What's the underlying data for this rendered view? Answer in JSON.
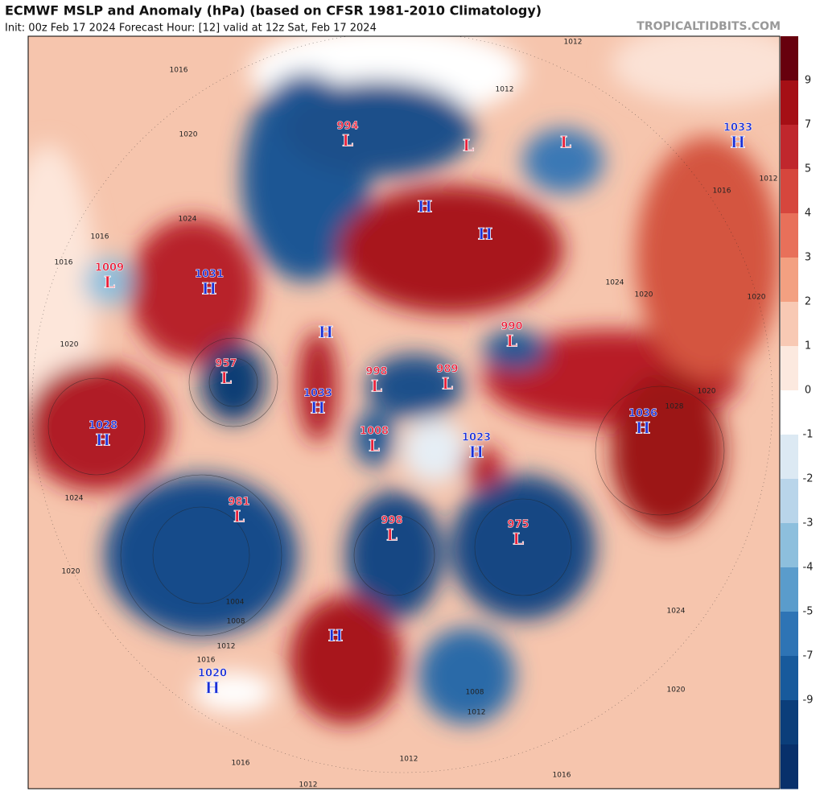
{
  "header": {
    "title": "ECMWF MSLP and Anomaly (hPa) (based on CFSR 1981-2010 Climatology)",
    "subtitle": "Init: 00z Feb 17 2024   Forecast Hour: [12]   valid at 12z Sat, Feb 17 2024",
    "site": "TROPICALTIDBITS.COM"
  },
  "colorbar": {
    "ticks": [
      9,
      7,
      5,
      4,
      3,
      2,
      1,
      0,
      -1,
      -2,
      -3,
      -4,
      -5,
      -7,
      -9
    ],
    "colors": [
      "#67000d",
      "#a50f15",
      "#c0272d",
      "#d6463d",
      "#e8705a",
      "#f3a081",
      "#f8c9b4",
      "#fce9df",
      "#ffffff",
      "#dce9f3",
      "#b9d5ea",
      "#8dbfdd",
      "#5a9ccc",
      "#2e74b5",
      "#175a9c",
      "#0b3e7a",
      "#08306b"
    ]
  },
  "centers": [
    {
      "label": "994",
      "kind": "L"
    },
    {
      "kind": "L"
    },
    {
      "kind": "L"
    },
    {
      "label": "1033",
      "kind": "H"
    },
    {
      "kind": "H"
    },
    {
      "kind": "H"
    },
    {
      "label": "1009",
      "kind": "L"
    },
    {
      "label": "1031",
      "kind": "H"
    },
    {
      "kind": "H"
    },
    {
      "label": "990",
      "kind": "L"
    },
    {
      "label": "957",
      "kind": "L"
    },
    {
      "label": "998",
      "kind": "L"
    },
    {
      "label": "989",
      "kind": "L"
    },
    {
      "label": "1033",
      "kind": "H"
    },
    {
      "label": "1028",
      "kind": "H"
    },
    {
      "label": "1036",
      "kind": "H"
    },
    {
      "label": "1008",
      "kind": "L"
    },
    {
      "label": "1023",
      "kind": "H"
    },
    {
      "label": "981",
      "kind": "L"
    },
    {
      "label": "998",
      "kind": "L"
    },
    {
      "label": "975",
      "kind": "L"
    },
    {
      "kind": "H"
    },
    {
      "label": "1020",
      "kind": "H"
    }
  ],
  "contour_labels": [
    1012,
    1016,
    1020,
    1024,
    1016,
    1016,
    1020,
    1024,
    1020,
    1016,
    1012,
    1008,
    1004,
    1016,
    1016,
    1012,
    1012,
    1020,
    1024,
    1020,
    1020,
    1016,
    1012,
    1024,
    1020,
    1012,
    1008,
    1028,
    1012
  ]
}
